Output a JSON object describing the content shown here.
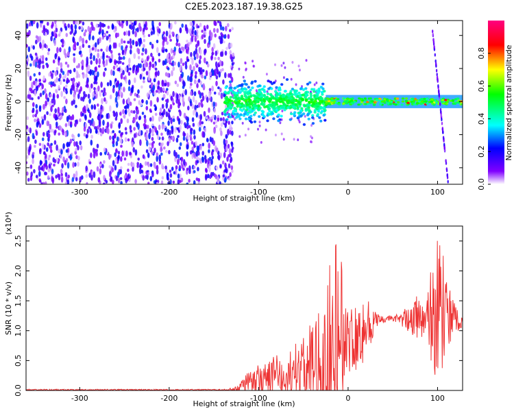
{
  "title": "C2E5.2023.187.19.38.G25",
  "chart_data": [
    {
      "type": "heatmap",
      "xlabel": "Height of straight line (km)",
      "ylabel": "Frequency (Hz)",
      "xlim": [
        -360,
        128
      ],
      "ylim": [
        -50,
        49
      ],
      "x_ticks": [
        -300,
        -200,
        -100,
        0,
        100
      ],
      "y_ticks": [
        -40,
        -20,
        0,
        20,
        40
      ],
      "colorbar": {
        "label": "Normalized spectral amplitude",
        "range": [
          0,
          1
        ],
        "ticks": [
          "0.0",
          "0.2",
          "0.4",
          "0.6",
          "0.8"
        ],
        "colors": [
          "#ffffff",
          "#8000ff",
          "#0000ff",
          "#00ffff",
          "#00ff00",
          "#ffff00",
          "#ff0000",
          "#ff0080"
        ]
      },
      "regions": [
        {
          "x_range": [
            -360,
            -128
          ],
          "freq_range": [
            -50,
            49
          ],
          "amplitude": "low (0.1-0.3)",
          "description": "broadband noise"
        },
        {
          "x_range": [
            -138,
            -25
          ],
          "freq_range": [
            -15,
            15
          ],
          "amplitude": "0.2-0.6"
        },
        {
          "x_range": [
            -25,
            128
          ],
          "freq_center": 0,
          "freq_halfwidth": 2,
          "amplitude": "0.4-0.9"
        },
        {
          "x_range": [
            94,
            112
          ],
          "freq_range": [
            -50,
            45
          ],
          "amplitude": "low",
          "description": "diagonal streak"
        }
      ]
    },
    {
      "type": "line",
      "xlabel": "Height of straight line (km)",
      "ylabel": "SNR (10 * v/v)",
      "y_multiplier": "(x10⁴)",
      "xlim": [
        -360,
        128
      ],
      "ylim": [
        0,
        2.75
      ],
      "x_ticks": [
        -300,
        -200,
        -100,
        0,
        100
      ],
      "y_ticks": [
        "0.0",
        "0.5",
        "1.0",
        "1.5",
        "2.0",
        "2.5"
      ],
      "series": [
        {
          "color": "#ee3333",
          "x": [
            -360,
            -300,
            -200,
            -140,
            -130,
            -120,
            -110,
            -100,
            -90,
            -80,
            -70,
            -60,
            -50,
            -40,
            -30,
            -20,
            -10,
            0,
            10,
            20,
            30,
            40,
            50,
            60,
            70,
            80,
            90,
            100,
            110,
            120,
            128
          ],
          "y": [
            0.01,
            0.01,
            0.01,
            0.01,
            0.02,
            0.05,
            0.12,
            0.15,
            0.18,
            0.2,
            0.23,
            0.27,
            0.3,
            0.4,
            0.55,
            0.75,
            0.8,
            0.85,
            0.95,
            1.05,
            1.15,
            1.18,
            1.2,
            1.18,
            1.22,
            1.2,
            1.18,
            1.3,
            1.25,
            1.15,
            1.12
          ],
          "envelope": [
            0.01,
            0.01,
            0.01,
            0.01,
            0.02,
            0.08,
            0.2,
            0.25,
            0.3,
            0.35,
            0.38,
            0.45,
            0.52,
            0.7,
            0.95,
            1.25,
            1.65,
            0.55,
            0.6,
            0.6,
            0.15,
            0.05,
            0.05,
            0.1,
            0.3,
            0.35,
            0.5,
            1.4,
            0.6,
            0.3,
            0.05
          ]
        }
      ]
    }
  ]
}
